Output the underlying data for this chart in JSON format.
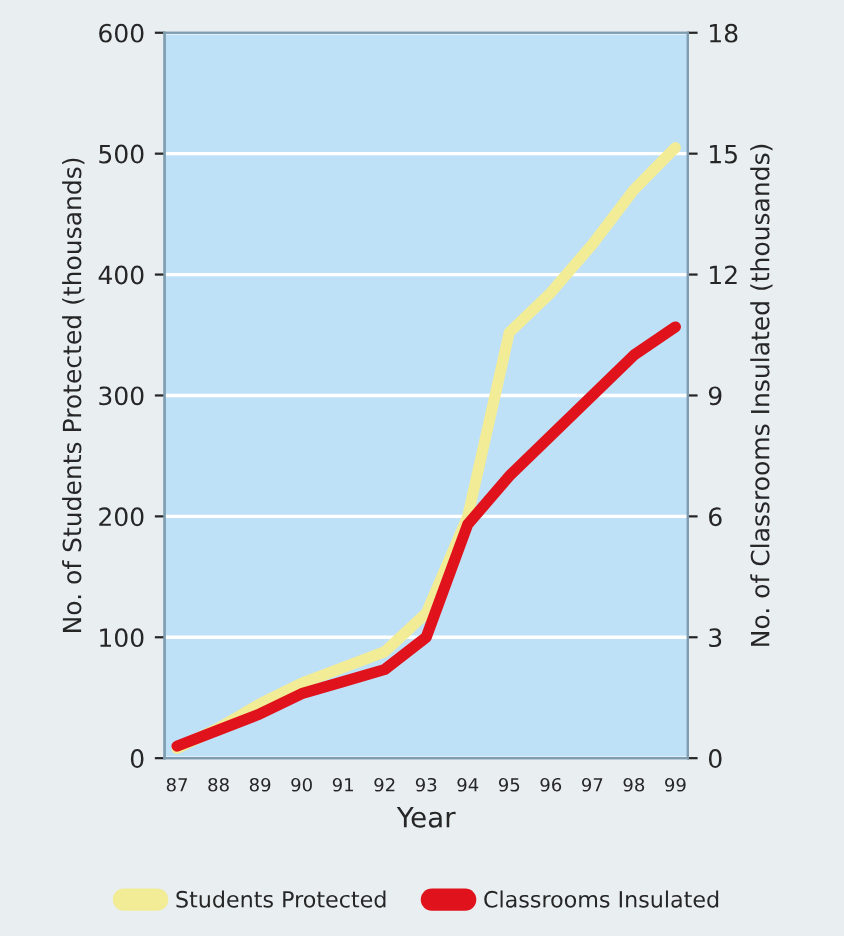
{
  "chart_data": {
    "type": "line",
    "xlabel": "Year",
    "ylabel": "No. of Students Protected (thousands)",
    "y2label": "No. of Classrooms Insulated (thousands)",
    "categories": [
      "87",
      "88",
      "89",
      "90",
      "91",
      "92",
      "93",
      "94",
      "95",
      "96",
      "97",
      "98",
      "99"
    ],
    "series": [
      {
        "name": "Students Protected",
        "color": "#f2ec96",
        "values": [
          8,
          25,
          45,
          62,
          75,
          88,
          120,
          200,
          352,
          385,
          425,
          470,
          505
        ]
      },
      {
        "name": "Classrooms Insulated",
        "color": "#e0131c",
        "axis": "y2",
        "values": [
          0.3,
          0.7,
          1.1,
          1.6,
          1.9,
          2.2,
          3.0,
          5.8,
          7.0,
          8.0,
          9.0,
          10.0,
          10.7
        ]
      }
    ],
    "ylim": [
      0,
      600
    ],
    "yticks": [
      0,
      100,
      200,
      300,
      400,
      500,
      600
    ],
    "y2lim": [
      0,
      18
    ],
    "y2ticks": [
      0,
      3,
      6,
      9,
      12,
      15,
      18
    ],
    "grid": "y",
    "legend": "bottom",
    "marker": "none",
    "line_style": "solid"
  }
}
